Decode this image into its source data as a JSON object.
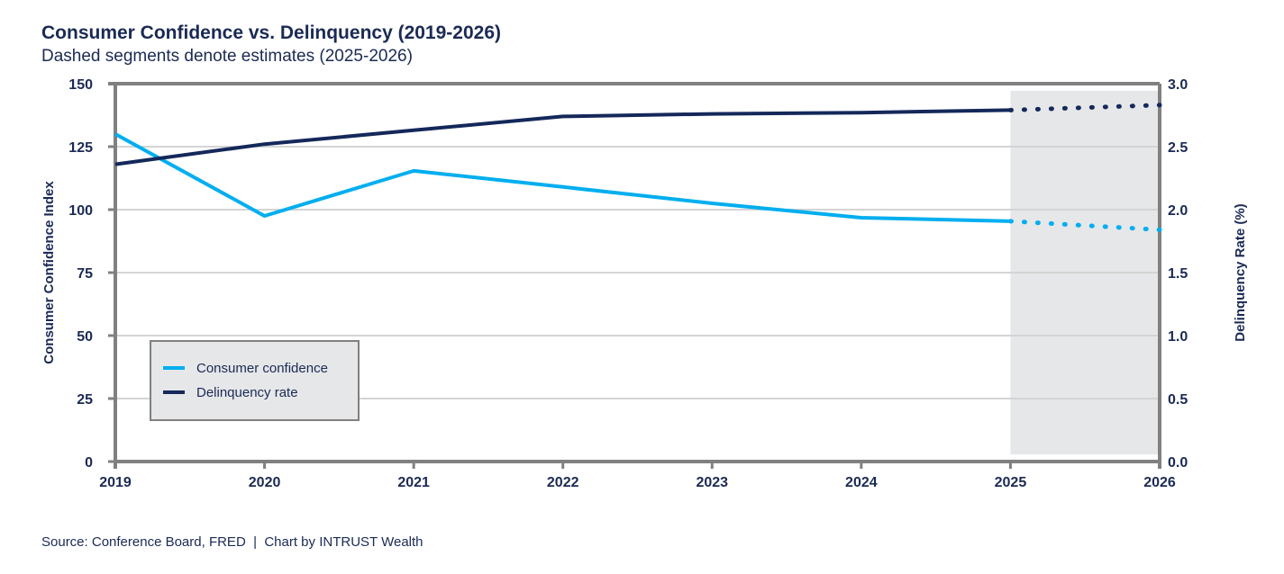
{
  "chart_data": {
    "type": "line",
    "title": "Consumer Confidence vs. Delinquency (2019-2026)",
    "subtitle": "Dashed segments denote estimates (2025-2026)",
    "source": "Source: Conference Board, FRED  |  Chart by INTRUST Wealth",
    "x": [
      2019,
      2020,
      2021,
      2022,
      2023,
      2024,
      2025,
      2026
    ],
    "x_tick_labels": [
      "2019",
      "2020",
      "2021",
      "2022",
      "2023",
      "2024",
      "2025",
      "2026"
    ],
    "estimate_start": 2025,
    "ylabel_left": "Consumer Confidence Index",
    "ylabel_right": "Delinquency Rate (%)",
    "ylim_left": [
      0,
      150
    ],
    "ylim_right": [
      0,
      3.0
    ],
    "y_ticks_left": [
      "0",
      "25",
      "50",
      "75",
      "100",
      "125",
      "150"
    ],
    "y_ticks_right": [
      "0.0",
      "0.5",
      "1.0",
      "1.5",
      "2.0",
      "2.5",
      "3.0"
    ],
    "grid": true,
    "legend_position": "lower-left",
    "series": [
      {
        "name": "Consumer confidence",
        "axis": "left",
        "color": "#00aeef",
        "values": [
          130,
          97.5,
          115.4,
          109,
          102.5,
          96.8,
          95.4,
          92
        ]
      },
      {
        "name": "Delinquency rate",
        "axis": "right",
        "color": "#14285a",
        "values": [
          2.36,
          2.52,
          2.63,
          2.74,
          2.76,
          2.77,
          2.79,
          2.83
        ]
      }
    ]
  }
}
